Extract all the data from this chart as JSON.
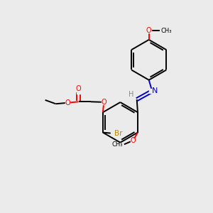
{
  "background_color": "#ebebeb",
  "bond_color": "#000000",
  "oxygen_color": "#ff0000",
  "nitrogen_color": "#0000cc",
  "bromine_color": "#bb8800",
  "hydrogen_color": "#888888",
  "figsize": [
    3.0,
    3.0
  ],
  "dpi": 100,
  "xlim": [
    0,
    10
  ],
  "ylim": [
    0,
    10
  ]
}
